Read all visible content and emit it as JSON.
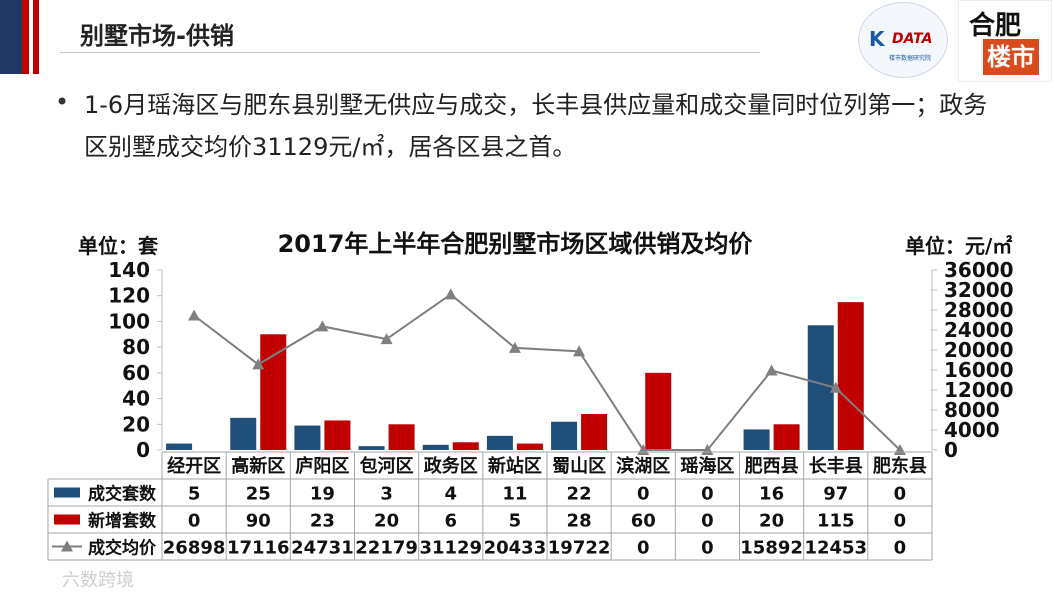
{
  "page": {
    "title": "别墅市场-供销",
    "bullet": "•",
    "paragraph": "1-6月瑶海区与肥东县别墅无供应与成交，长丰县供应量和成交量同时位列第一；政务区别墅成交均价31129元/㎡，居各区县之首。",
    "logo_left": {
      "brand": "K",
      "name": "DATA",
      "sub": "楼市数据研究院"
    },
    "logo_right": {
      "line1": "合肥",
      "line2": "楼市"
    },
    "watermark": "六数跨境"
  },
  "chart_data": {
    "type": "bar",
    "title": "2017年上半年合肥别墅市场区域供销及均价",
    "ylabel_left": "单位：套",
    "ylabel_right": "单位：元/㎡",
    "categories": [
      "经开区",
      "高新区",
      "庐阳区",
      "包河区",
      "政务区",
      "新站区",
      "蜀山区",
      "滨湖区",
      "瑶海区",
      "肥西县",
      "长丰县",
      "肥东县"
    ],
    "series": [
      {
        "name": "成交套数",
        "type": "bar",
        "axis": "left",
        "color": "#1f4e79",
        "values": [
          5,
          25,
          19,
          3,
          4,
          11,
          22,
          0,
          0,
          16,
          97,
          0
        ]
      },
      {
        "name": "新增套数",
        "type": "bar",
        "axis": "left",
        "color": "#c00000",
        "values": [
          0,
          90,
          23,
          20,
          6,
          5,
          28,
          60,
          0,
          20,
          115,
          0
        ]
      },
      {
        "name": "成交均价",
        "type": "line",
        "axis": "right",
        "color": "#7f7f7f",
        "values": [
          26898,
          17116,
          24731,
          22179,
          31129,
          20433,
          19722,
          0,
          0,
          15892,
          12453,
          0
        ]
      }
    ],
    "ylim_left": [
      0,
      140
    ],
    "ylim_right": [
      0,
      36000
    ],
    "yticks_left": [
      "0",
      "20",
      "40",
      "60",
      "80",
      "100",
      "120",
      "140"
    ],
    "yticks_right": [
      "0",
      "4000",
      "8000",
      "12000",
      "16000",
      "20000",
      "24000",
      "28000",
      "32000",
      "36000"
    ],
    "legend": "data-table"
  }
}
